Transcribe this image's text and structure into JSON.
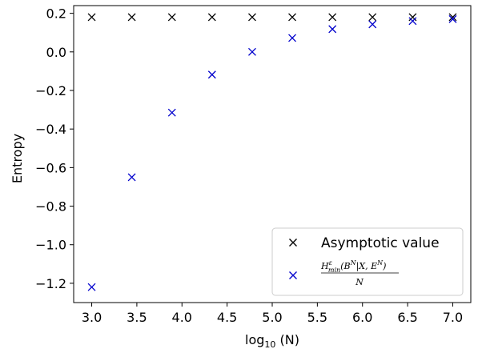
{
  "chart_data": {
    "type": "scatter",
    "title": "",
    "xlabel": "log10(N)",
    "xlabel_parts": {
      "base": "log",
      "subscript": "10",
      "arg": "(N)"
    },
    "ylabel": "Entropy",
    "xlim": [
      2.8,
      7.2
    ],
    "ylim": [
      -1.3,
      0.24
    ],
    "xticks": [
      3.0,
      3.5,
      4.0,
      4.5,
      5.0,
      5.5,
      6.0,
      6.5,
      7.0
    ],
    "xtick_labels": [
      "3.0",
      "3.5",
      "4.0",
      "4.5",
      "5.0",
      "5.5",
      "6.0",
      "6.5",
      "7.0"
    ],
    "yticks": [
      0.2,
      0.0,
      -0.2,
      -0.4,
      -0.6,
      -0.8,
      -1.0,
      -1.2
    ],
    "ytick_labels": [
      "0.2",
      "0.0",
      "−0.2",
      "−0.4",
      "−0.6",
      "−0.8",
      "−1.0",
      "−1.2"
    ],
    "grid": false,
    "legend_position": "lower-right",
    "series": [
      {
        "name": "Asymptotic value",
        "color": "#000000",
        "marker": "x",
        "x": [
          3.0,
          3.444,
          3.889,
          4.333,
          4.778,
          5.222,
          5.667,
          6.111,
          6.556,
          7.0
        ],
        "y": [
          0.18,
          0.18,
          0.18,
          0.18,
          0.18,
          0.18,
          0.18,
          0.18,
          0.18,
          0.18
        ]
      },
      {
        "name": "H_min^ε(B^N|X,E^N)/N",
        "legend_math": {
          "H": "H",
          "sup": "ε",
          "sub": "min",
          "args_open": "(B",
          "args_sup": "N",
          "args_mid": "|X, E",
          "args_sup2": "N",
          "args_close": ")",
          "denominator": "N"
        },
        "color": "#0000cc",
        "marker": "x",
        "x": [
          3.0,
          3.444,
          3.889,
          4.333,
          4.778,
          5.222,
          5.667,
          6.111,
          6.556,
          7.0
        ],
        "y": [
          -1.22,
          -0.65,
          -0.315,
          -0.118,
          0.0,
          0.072,
          0.118,
          0.143,
          0.16,
          0.17
        ]
      }
    ]
  }
}
